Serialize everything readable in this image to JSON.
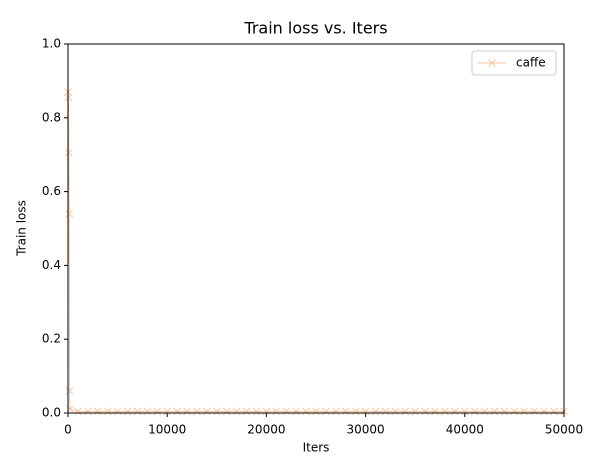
{
  "chart_data": {
    "type": "line",
    "title": "Train loss  vs. Iters",
    "x_label": "Iters",
    "y_label": "Train loss",
    "x": [
      0,
      40,
      80,
      120,
      160,
      200,
      1000,
      2000,
      3000,
      4000,
      5000,
      6000,
      7000,
      8000,
      9000,
      10000,
      11000,
      12000,
      13000,
      14000,
      15000,
      16000,
      17000,
      18000,
      19000,
      20000,
      21000,
      22000,
      23000,
      24000,
      25000,
      26000,
      27000,
      28000,
      29000,
      30000,
      31000,
      32000,
      33000,
      34000,
      35000,
      36000,
      37000,
      38000,
      39000,
      40000,
      41000,
      42000,
      43000,
      44000,
      45000,
      46000,
      47000,
      48000,
      49000,
      50000
    ],
    "series": [
      {
        "name": "caffe",
        "color": "#f7c6a0",
        "marker": "x",
        "values": [
          0.87,
          0.855,
          0.705,
          0.54,
          0.06,
          0.01,
          0.004,
          0.004,
          0.004,
          0.004,
          0.004,
          0.004,
          0.004,
          0.004,
          0.004,
          0.004,
          0.004,
          0.004,
          0.004,
          0.004,
          0.004,
          0.004,
          0.004,
          0.004,
          0.004,
          0.004,
          0.004,
          0.004,
          0.004,
          0.004,
          0.004,
          0.004,
          0.004,
          0.004,
          0.004,
          0.004,
          0.004,
          0.004,
          0.004,
          0.004,
          0.004,
          0.004,
          0.004,
          0.004,
          0.004,
          0.004,
          0.004,
          0.004,
          0.004,
          0.004,
          0.004,
          0.004,
          0.004,
          0.004,
          0.004,
          0.004
        ]
      }
    ],
    "xlim": [
      0,
      50000
    ],
    "xticks": [
      0,
      10000,
      20000,
      30000,
      40000,
      50000
    ],
    "ylim": [
      0,
      1
    ],
    "yticks": [
      {
        "value": 0,
        "label": "0.0"
      },
      {
        "value": 0.2,
        "label": "0.2"
      },
      {
        "value": 0.4,
        "label": "0.4"
      },
      {
        "value": 0.6,
        "label": "0.6"
      },
      {
        "value": 0.8,
        "label": "0.8"
      },
      {
        "value": 1,
        "label": "1.0"
      }
    ],
    "legend": "upper right",
    "grid": false
  }
}
